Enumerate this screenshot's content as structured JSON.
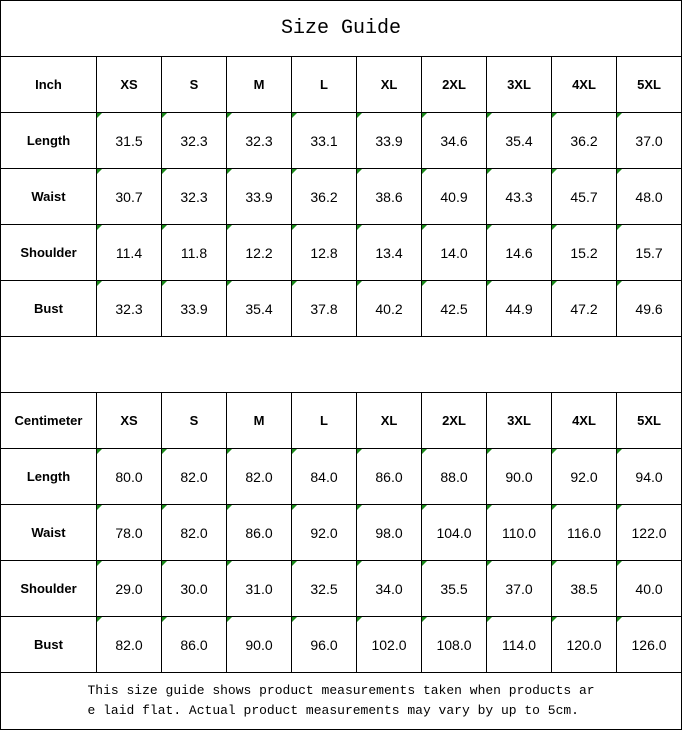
{
  "title": "Size Guide",
  "sizes": [
    "XS",
    "S",
    "M",
    "L",
    "XL",
    "2XL",
    "3XL",
    "4XL",
    "5XL"
  ],
  "tables": [
    {
      "unit": "Inch",
      "rows": [
        {
          "label": "Length",
          "values": [
            "31.5",
            "32.3",
            "32.3",
            "33.1",
            "33.9",
            "34.6",
            "35.4",
            "36.2",
            "37.0"
          ]
        },
        {
          "label": "Waist",
          "values": [
            "30.7",
            "32.3",
            "33.9",
            "36.2",
            "38.6",
            "40.9",
            "43.3",
            "45.7",
            "48.0"
          ]
        },
        {
          "label": "Shoulder",
          "values": [
            "11.4",
            "11.8",
            "12.2",
            "12.8",
            "13.4",
            "14.0",
            "14.6",
            "15.2",
            "15.7"
          ]
        },
        {
          "label": "Bust",
          "values": [
            "32.3",
            "33.9",
            "35.4",
            "37.8",
            "40.2",
            "42.5",
            "44.9",
            "47.2",
            "49.6"
          ]
        }
      ]
    },
    {
      "unit": "Centimeter",
      "rows": [
        {
          "label": "Length",
          "values": [
            "80.0",
            "82.0",
            "82.0",
            "84.0",
            "86.0",
            "88.0",
            "90.0",
            "92.0",
            "94.0"
          ]
        },
        {
          "label": "Waist",
          "values": [
            "78.0",
            "82.0",
            "86.0",
            "92.0",
            "98.0",
            "104.0",
            "110.0",
            "116.0",
            "122.0"
          ]
        },
        {
          "label": "Shoulder",
          "values": [
            "29.0",
            "30.0",
            "31.0",
            "32.5",
            "34.0",
            "35.5",
            "37.0",
            "38.5",
            "40.0"
          ]
        },
        {
          "label": "Bust",
          "values": [
            "82.0",
            "86.0",
            "90.0",
            "96.0",
            "102.0",
            "108.0",
            "114.0",
            "120.0",
            "126.0"
          ]
        }
      ]
    }
  ],
  "footnote": "This size guide shows product measurements taken when products are laid flat. Actual product measurements may vary by up to 5cm.",
  "colors": {
    "text_number_indicator": "#1a8a1a",
    "border": "#000000"
  }
}
